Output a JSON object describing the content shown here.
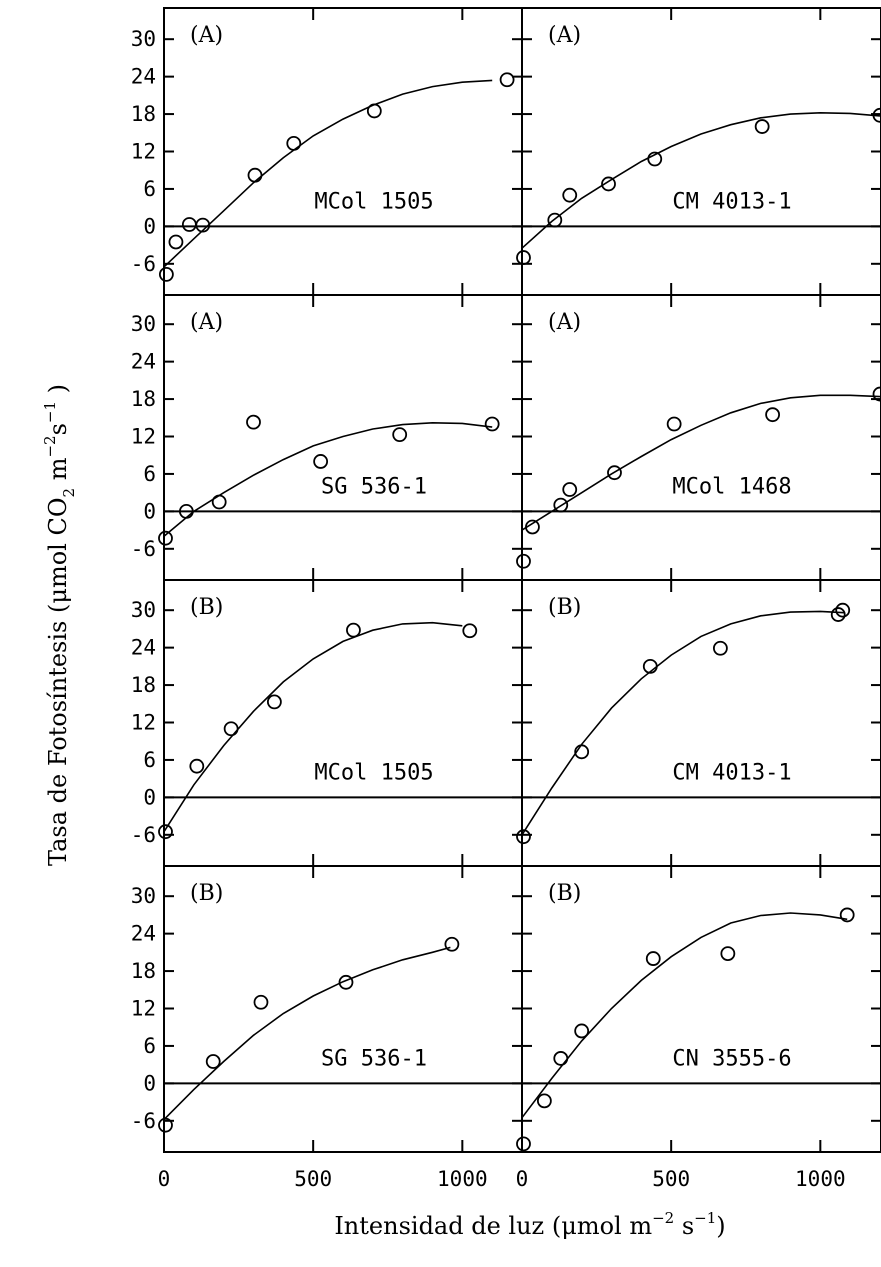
{
  "chart_data": {
    "type": "scatter",
    "layout": "grid-4x2",
    "xlabel_parts": [
      "Intensidad de luz  (",
      "μ",
      "mol m",
      "−2",
      " s",
      "−1",
      ")"
    ],
    "ylabel_parts": [
      "Tasa de Fotosíntesis (",
      "μ",
      "mol CO",
      "2",
      " m",
      "−2",
      "s",
      "−1",
      " )"
    ],
    "x_range": [
      0,
      1200
    ],
    "y_range": [
      -11,
      35
    ],
    "x_ticks": [
      0,
      500,
      1000
    ],
    "y_ticks": [
      -6,
      0,
      6,
      12,
      18,
      24,
      30
    ],
    "zero_line": true,
    "grid": false,
    "panels": [
      {
        "tag": "(A)",
        "name": "MCol 1505",
        "points": [
          [
            8,
            -7.7
          ],
          [
            40,
            -2.5
          ],
          [
            85,
            0.3
          ],
          [
            130,
            0.2
          ],
          [
            305,
            8.2
          ],
          [
            435,
            13.3
          ],
          [
            705,
            18.5
          ],
          [
            1150,
            23.5
          ]
        ],
        "fit": [
          [
            0,
            -6.5
          ],
          [
            100,
            -2
          ],
          [
            200,
            2.5
          ],
          [
            300,
            7
          ],
          [
            400,
            11
          ],
          [
            500,
            14.5
          ],
          [
            600,
            17.2
          ],
          [
            700,
            19.4
          ],
          [
            800,
            21.2
          ],
          [
            900,
            22.4
          ],
          [
            1000,
            23.1
          ],
          [
            1100,
            23.4
          ]
        ]
      },
      {
        "tag": "(A)",
        "name": "CM 4013-1",
        "points": [
          [
            5,
            -5.0
          ],
          [
            110,
            1.0
          ],
          [
            160,
            5.0
          ],
          [
            290,
            6.8
          ],
          [
            445,
            10.8
          ],
          [
            805,
            16.0
          ],
          [
            1200,
            17.8
          ]
        ],
        "fit": [
          [
            0,
            -3.5
          ],
          [
            100,
            0.8
          ],
          [
            200,
            4.5
          ],
          [
            300,
            7.5
          ],
          [
            400,
            10.4
          ],
          [
            500,
            12.8
          ],
          [
            600,
            14.8
          ],
          [
            700,
            16.3
          ],
          [
            800,
            17.4
          ],
          [
            900,
            18
          ],
          [
            1000,
            18.2
          ],
          [
            1100,
            18.1
          ],
          [
            1200,
            17.7
          ]
        ]
      },
      {
        "tag": "(A)",
        "name": "SG 536-1",
        "points": [
          [
            5,
            -4.3
          ],
          [
            75,
            0.0
          ],
          [
            185,
            1.5
          ],
          [
            300,
            14.3
          ],
          [
            525,
            8.0
          ],
          [
            790,
            12.3
          ],
          [
            1100,
            14.0
          ]
        ],
        "fit": [
          [
            0,
            -4
          ],
          [
            100,
            0
          ],
          [
            200,
            3
          ],
          [
            300,
            5.8
          ],
          [
            400,
            8.3
          ],
          [
            500,
            10.5
          ],
          [
            600,
            12
          ],
          [
            700,
            13.2
          ],
          [
            800,
            13.9
          ],
          [
            900,
            14.2
          ],
          [
            1000,
            14.1
          ],
          [
            1100,
            13.5
          ]
        ]
      },
      {
        "tag": "(A)",
        "name": "MCol 1468",
        "points": [
          [
            5,
            -8.0
          ],
          [
            35,
            -2.5
          ],
          [
            130,
            1.0
          ],
          [
            160,
            3.5
          ],
          [
            310,
            6.2
          ],
          [
            510,
            14.0
          ],
          [
            840,
            15.5
          ],
          [
            1200,
            18.8
          ]
        ],
        "fit": [
          [
            0,
            -3
          ],
          [
            100,
            0
          ],
          [
            200,
            3
          ],
          [
            300,
            6
          ],
          [
            400,
            8.8
          ],
          [
            500,
            11.5
          ],
          [
            600,
            13.8
          ],
          [
            700,
            15.8
          ],
          [
            800,
            17.3
          ],
          [
            900,
            18.2
          ],
          [
            1000,
            18.6
          ],
          [
            1100,
            18.6
          ],
          [
            1200,
            18.4
          ]
        ]
      },
      {
        "tag": "(B)",
        "name": "MCol 1505",
        "points": [
          [
            5,
            -5.5
          ],
          [
            110,
            5.0
          ],
          [
            225,
            11.0
          ],
          [
            370,
            15.3
          ],
          [
            635,
            26.8
          ],
          [
            1025,
            26.7
          ]
        ],
        "fit": [
          [
            0,
            -5.5
          ],
          [
            100,
            2
          ],
          [
            200,
            8.3
          ],
          [
            300,
            13.8
          ],
          [
            400,
            18.5
          ],
          [
            500,
            22.2
          ],
          [
            600,
            25
          ],
          [
            700,
            26.8
          ],
          [
            800,
            27.8
          ],
          [
            900,
            28
          ],
          [
            1000,
            27.5
          ]
        ]
      },
      {
        "tag": "(B)",
        "name": "CM 4013-1",
        "points": [
          [
            5,
            -6.3
          ],
          [
            200,
            7.3
          ],
          [
            430,
            21.0
          ],
          [
            665,
            23.9
          ],
          [
            1060,
            29.3
          ],
          [
            1075,
            30.0
          ]
        ],
        "fit": [
          [
            0,
            -6
          ],
          [
            100,
            1.5
          ],
          [
            200,
            8.5
          ],
          [
            300,
            14.3
          ],
          [
            400,
            19
          ],
          [
            500,
            22.8
          ],
          [
            600,
            25.8
          ],
          [
            700,
            27.8
          ],
          [
            800,
            29.1
          ],
          [
            900,
            29.7
          ],
          [
            1000,
            29.8
          ],
          [
            1080,
            29.6
          ]
        ]
      },
      {
        "tag": "(B)",
        "name": "SG 536-1",
        "points": [
          [
            5,
            -6.7
          ],
          [
            165,
            3.5
          ],
          [
            325,
            13.0
          ],
          [
            610,
            16.2
          ],
          [
            965,
            22.3
          ]
        ],
        "fit": [
          [
            0,
            -5.8
          ],
          [
            100,
            -1
          ],
          [
            200,
            3.5
          ],
          [
            300,
            7.7
          ],
          [
            400,
            11.2
          ],
          [
            500,
            14
          ],
          [
            600,
            16.3
          ],
          [
            700,
            18.2
          ],
          [
            800,
            19.8
          ],
          [
            900,
            21
          ],
          [
            960,
            21.8
          ]
        ]
      },
      {
        "tag": "(B)",
        "name": "CN 3555-6",
        "points": [
          [
            5,
            -9.7
          ],
          [
            75,
            -2.8
          ],
          [
            130,
            4.0
          ],
          [
            200,
            8.4
          ],
          [
            440,
            20.0
          ],
          [
            690,
            20.8
          ],
          [
            1090,
            27.0
          ]
        ],
        "fit": [
          [
            0,
            -5.5
          ],
          [
            100,
            0.8
          ],
          [
            200,
            6.8
          ],
          [
            300,
            12
          ],
          [
            400,
            16.5
          ],
          [
            500,
            20.3
          ],
          [
            600,
            23.4
          ],
          [
            700,
            25.7
          ],
          [
            800,
            26.9
          ],
          [
            900,
            27.3
          ],
          [
            1000,
            27
          ],
          [
            1090,
            26.3
          ]
        ]
      }
    ]
  }
}
